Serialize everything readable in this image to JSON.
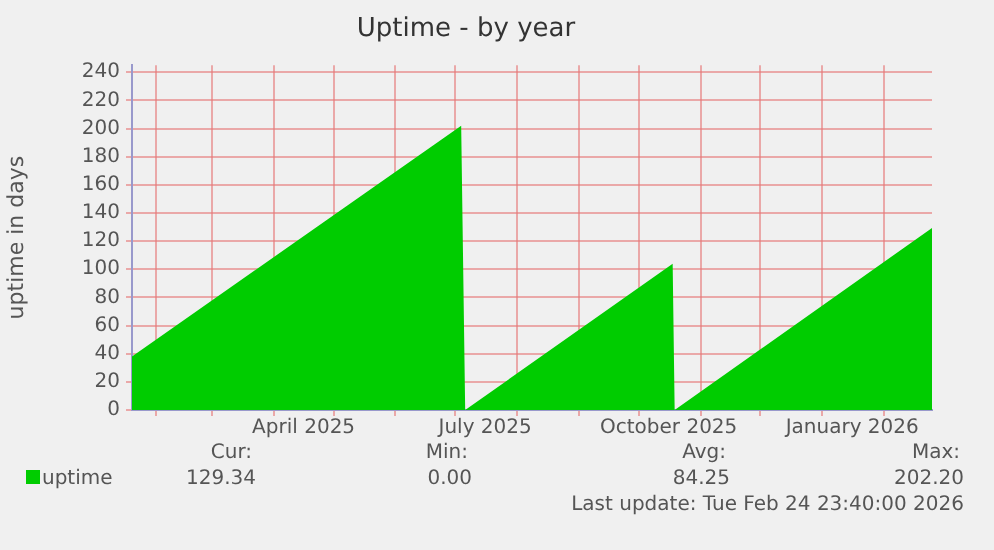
{
  "chart_data": {
    "type": "area",
    "title": "Uptime - by year",
    "ylabel": "uptime in days",
    "series": [
      {
        "name": "uptime",
        "color": "#00cc00",
        "x": [
          "2025-01-20",
          "2025-07-04",
          "2025-07-06",
          "2025-10-18",
          "2025-10-19",
          "2026-02-24T23:40"
        ],
        "values": [
          38,
          202,
          0,
          104,
          0,
          129.34
        ]
      }
    ],
    "xlim": [
      "2025-01-20",
      "2026-02-24T23:40"
    ],
    "xticks": [
      {
        "value": "2025-02-01",
        "label": null
      },
      {
        "value": "2025-03-01",
        "label": null
      },
      {
        "value": "2025-04-01",
        "label": null
      },
      {
        "value": "2025-04-16",
        "label": "April 2025"
      },
      {
        "value": "2025-05-01",
        "label": null
      },
      {
        "value": "2025-06-01",
        "label": null
      },
      {
        "value": "2025-07-01",
        "label": null
      },
      {
        "value": "2025-07-16",
        "label": "July 2025"
      },
      {
        "value": "2025-08-01",
        "label": null
      },
      {
        "value": "2025-09-01",
        "label": null
      },
      {
        "value": "2025-10-01",
        "label": null
      },
      {
        "value": "2025-10-16",
        "label": "October 2025"
      },
      {
        "value": "2025-11-01",
        "label": null
      },
      {
        "value": "2025-12-01",
        "label": null
      },
      {
        "value": "2026-01-01",
        "label": null
      },
      {
        "value": "2026-01-16",
        "label": "January 2026"
      },
      {
        "value": "2026-02-01",
        "label": null
      }
    ],
    "ylim": [
      0,
      245
    ],
    "yticks": [
      0,
      20,
      40,
      60,
      80,
      100,
      120,
      140,
      160,
      180,
      200,
      220,
      240
    ],
    "grid": true,
    "legend": "bottom",
    "annotations": [
      "Cur:",
      "Min:",
      "Avg:",
      "Max:",
      "129.34",
      "0.00",
      "84.25",
      "202.20",
      "Last update: Tue Feb 24 23:40:00 2026"
    ]
  }
}
